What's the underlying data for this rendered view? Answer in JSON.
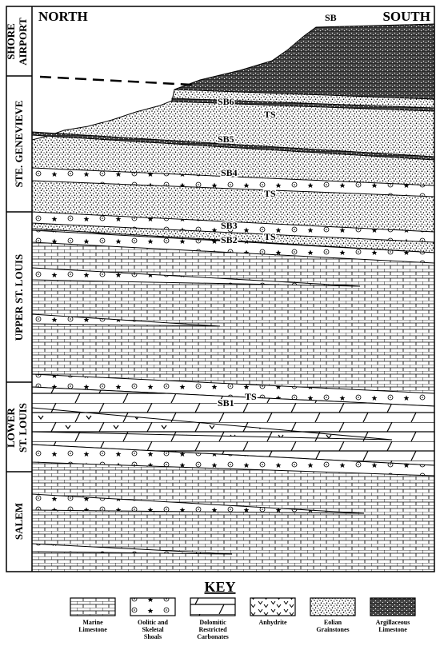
{
  "header": {
    "north": "NORTH",
    "south": "SOUTH"
  },
  "formations": [
    {
      "label": [
        "SHORE",
        "AIRPORT"
      ]
    },
    {
      "label": [
        "STE. GENEVIEVE"
      ]
    },
    {
      "label": [
        "UPPER ST. LOUIS"
      ]
    },
    {
      "label": [
        "LOWER",
        "ST. LOUIS"
      ]
    },
    {
      "label": [
        "SALEM"
      ]
    }
  ],
  "surfaces": [
    {
      "label": "SB"
    },
    {
      "label": "SB6"
    },
    {
      "label": "TS"
    },
    {
      "label": "SB5"
    },
    {
      "label": "SB4"
    },
    {
      "label": "TS"
    },
    {
      "label": "SB3"
    },
    {
      "label": "TS"
    },
    {
      "label": "SB2"
    },
    {
      "label": "TS"
    },
    {
      "label": "SB1"
    }
  ],
  "key": {
    "title": "KEY",
    "items": [
      {
        "label": [
          "Marine",
          "Limestone"
        ]
      },
      {
        "label": [
          "Oolitic and",
          "Skeletal",
          "Shoals"
        ]
      },
      {
        "label": [
          "Dolomitic",
          "Restricted",
          "Carbonates"
        ]
      },
      {
        "label": [
          "Anhydrite"
        ]
      },
      {
        "label": [
          "Eolian",
          "Grainstones"
        ]
      },
      {
        "label": [
          "Argillaceous",
          "Limestone"
        ]
      }
    ]
  }
}
